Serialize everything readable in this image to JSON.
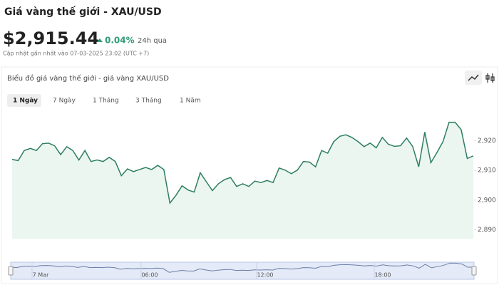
{
  "header": {
    "title": "Giá vàng thế giới - XAU/USD",
    "price": "$2,915.44",
    "change": "0.04%",
    "change_period": "24h qua",
    "updated": "Cập nhật gần nhất vào 07-03-2025 23:02 (UTC +7)"
  },
  "chart_data": {
    "type": "line",
    "title": "Biểu đồ giá vàng thế giới - giá vàng XAU/USD",
    "tabs": [
      "1 Ngày",
      "7 Ngày",
      "1 Tháng",
      "3 Tháng",
      "1 Năm"
    ],
    "color": "#2e7d62",
    "values": [
      2913.7,
      2913.3,
      2916.7,
      2917.4,
      2916.7,
      2919.0,
      2919.2,
      2918.3,
      2915.3,
      2918.0,
      2916.7,
      2913.5,
      2916.7,
      2913.0,
      2913.5,
      2913.0,
      2914.4,
      2913.0,
      2908.2,
      2910.5,
      2909.6,
      2910.3,
      2911.0,
      2910.3,
      2911.7,
      2910.3,
      2899.0,
      2901.6,
      2904.8,
      2903.4,
      2902.7,
      2909.2,
      2906.2,
      2903.2,
      2905.5,
      2906.9,
      2907.6,
      2904.6,
      2905.5,
      2904.6,
      2906.4,
      2905.9,
      2906.6,
      2905.9,
      2910.8,
      2910.1,
      2908.9,
      2910.1,
      2913.0,
      2912.8,
      2911.2,
      2916.7,
      2915.8,
      2919.7,
      2921.5,
      2922.0,
      2921.1,
      2919.7,
      2918.0,
      2919.2,
      2917.6,
      2921.1,
      2918.8,
      2918.1,
      2918.3,
      2920.9,
      2918.1,
      2911.2,
      2922.9,
      2912.6,
      2916.0,
      2919.7,
      2926.2,
      2926.2,
      2923.7,
      2914.0,
      2914.9
    ],
    "ylim": [
      2887,
      2929
    ],
    "yticks": [
      {
        "value": 2890,
        "label": "2,890"
      },
      {
        "value": 2900,
        "label": "2,900"
      },
      {
        "value": 2910,
        "label": "2,910"
      },
      {
        "value": 2920,
        "label": "2,920"
      }
    ],
    "navigator_labels": [
      "7 Mar",
      "06:00",
      "12:00",
      "18:00"
    ]
  }
}
